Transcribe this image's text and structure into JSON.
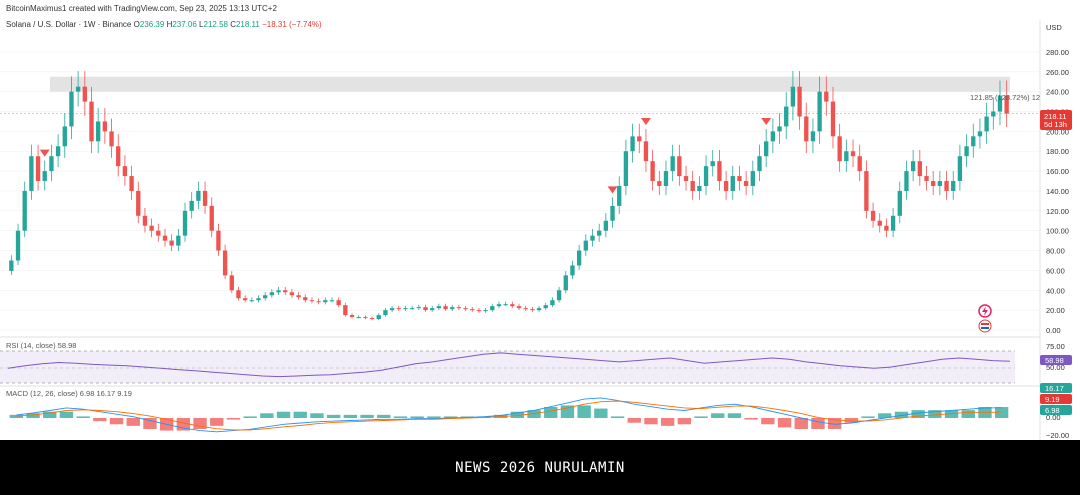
{
  "header": {
    "creator": "BitcoinMaximus1 created with TradingView.com, Sep 23, 2025 13:13 UTC+2",
    "symbol": "Solana / U.S. Dollar · 1W · Binance",
    "o_label": "O",
    "o_value": "236.39",
    "h_label": "H",
    "h_value": "237.06",
    "l_label": "L",
    "l_value": "212.58",
    "c_label": "C",
    "c_value": "218.11",
    "change": "−18.31 (−7.74%)"
  },
  "price_axis": {
    "currency": "USD",
    "ticks": [
      "280.00",
      "260.00",
      "240.00",
      "220.00",
      "200.00",
      "180.00",
      "160.00",
      "140.00",
      "120.00",
      "100.00",
      "80.00",
      "60.00",
      "40.00",
      "20.00",
      "0.00"
    ]
  },
  "annotations": {
    "measure_label": "121.85 (128.72%) 12",
    "last_price": "218.11",
    "countdown": "5d 13h"
  },
  "rsi": {
    "label": "RSI (14, close) 58.98",
    "ticks": [
      "75.00",
      "50.00"
    ],
    "value_badge": "58.98"
  },
  "macd": {
    "label": "MACD (12, 26, close) 6.98 16.17 9.19",
    "ticks": [
      "0.00",
      "−20.00"
    ],
    "badges": [
      "16.17",
      "9.19",
      "6.98"
    ]
  },
  "footer": {
    "banner": "NEWS 2026 NURULAMIN"
  },
  "colors": {
    "up": "#26a69a",
    "down": "#ef5350",
    "resistance": "#e0e0e0",
    "rsi_line": "#7e57c2",
    "macd_line": "#2196f3",
    "signal_line": "#ff6d00",
    "badge_red": "#e53935",
    "badge_green": "#26a69a"
  },
  "chart_data": {
    "type": "candlestick",
    "title": "Solana / U.S. Dollar · 1W · Binance",
    "ylabel": "USD",
    "ylim": [
      0,
      290
    ],
    "resistance_zone": [
      240,
      255
    ],
    "dotted_level": 218,
    "reversal_markers": [
      {
        "index": 5,
        "label": ""
      },
      {
        "index": 90,
        "label": ""
      },
      {
        "index": 95,
        "label": ""
      },
      {
        "index": 113,
        "label": ""
      }
    ],
    "closes": [
      70,
      100,
      140,
      175,
      150,
      160,
      175,
      185,
      205,
      240,
      245,
      230,
      190,
      210,
      200,
      185,
      165,
      155,
      140,
      115,
      105,
      100,
      95,
      90,
      85,
      95,
      120,
      130,
      140,
      125,
      100,
      80,
      55,
      40,
      32,
      30,
      30,
      32,
      35,
      38,
      40,
      38,
      35,
      33,
      30,
      29,
      28,
      30,
      30,
      25,
      15,
      13,
      13,
      12,
      11,
      15,
      20,
      22,
      21,
      22,
      22,
      23,
      20,
      22,
      24,
      21,
      23,
      22,
      21,
      20,
      19,
      20,
      24,
      26,
      26,
      24,
      22,
      21,
      20,
      22,
      25,
      30,
      40,
      55,
      65,
      80,
      90,
      95,
      100,
      110,
      125,
      145,
      180,
      195,
      190,
      170,
      150,
      145,
      160,
      175,
      155,
      150,
      140,
      145,
      165,
      170,
      150,
      140,
      155,
      150,
      145,
      160,
      175,
      190,
      200,
      205,
      225,
      245,
      215,
      190,
      200,
      240,
      230,
      195,
      170,
      180,
      175,
      160,
      120,
      110,
      105,
      100,
      115,
      140,
      160,
      170,
      155,
      150,
      145,
      150,
      140,
      150,
      175,
      185,
      195,
      200,
      215,
      220,
      236,
      218
    ],
    "rsi": [
      48,
      52,
      55,
      57,
      56,
      54,
      53,
      52,
      50,
      48,
      46,
      44,
      42,
      40,
      38,
      36,
      35,
      36,
      37,
      38,
      40,
      42,
      45,
      50,
      55,
      58,
      62,
      66,
      70,
      72,
      70,
      68,
      66,
      64,
      62,
      60,
      58,
      60,
      62,
      64,
      60,
      56,
      58,
      60,
      62,
      64,
      62,
      58,
      55,
      52,
      50,
      48,
      50,
      54,
      58,
      62,
      64,
      62,
      60,
      59
    ],
    "macd": [
      5,
      8,
      12,
      16,
      14,
      10,
      6,
      2,
      -4,
      -10,
      -16,
      -20,
      -22,
      -20,
      -18,
      -14,
      -10,
      -8,
      -6,
      -5,
      -4,
      -3,
      -2,
      -2,
      -1,
      -1,
      0,
      1,
      2,
      4,
      8,
      12,
      18,
      24,
      30,
      32,
      28,
      22,
      18,
      14,
      12,
      16,
      20,
      22,
      18,
      12,
      6,
      0,
      -6,
      -10,
      -8,
      -4,
      0,
      4,
      8,
      10,
      12,
      14,
      16,
      16.17
    ],
    "signal": [
      3,
      5,
      8,
      12,
      13,
      12,
      10,
      7,
      3,
      -2,
      -8,
      -13,
      -17,
      -19,
      -19,
      -17,
      -14,
      -12,
      -9,
      -7,
      -6,
      -5,
      -4,
      -3,
      -2,
      -2,
      -1,
      0,
      1,
      2,
      4,
      7,
      11,
      16,
      22,
      26,
      27,
      25,
      22,
      19,
      16,
      15,
      17,
      19,
      19,
      16,
      12,
      7,
      1,
      -3,
      -5,
      -5,
      -3,
      0,
      3,
      5,
      7,
      9,
      9,
      9.19
    ]
  }
}
